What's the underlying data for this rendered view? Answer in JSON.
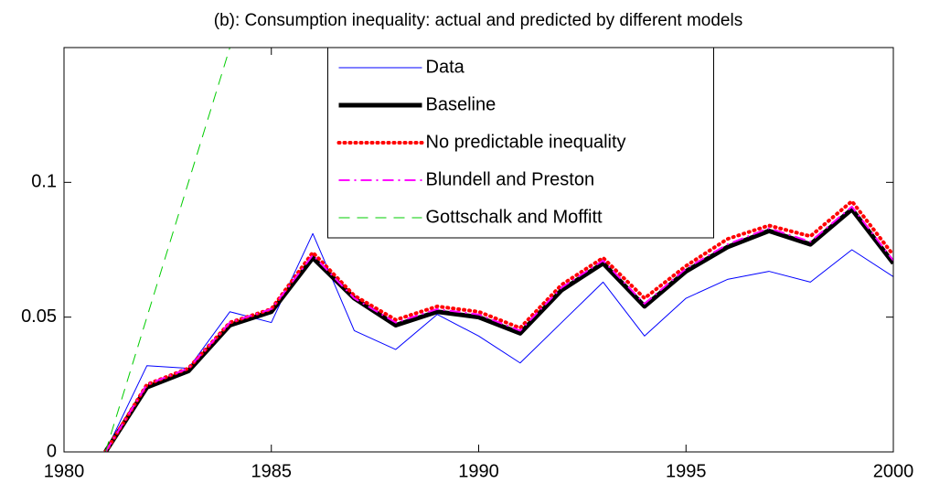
{
  "chart_data": {
    "type": "line",
    "title": "(b): Consumption inequality: actual and predicted by different models",
    "x": [
      1981,
      1982,
      1983,
      1984,
      1985,
      1986,
      1987,
      1988,
      1989,
      1990,
      1991,
      1992,
      1993,
      1994,
      1995,
      1996,
      1997,
      1998,
      1999,
      2000
    ],
    "series": [
      {
        "name": "Data",
        "color": "#0000ff",
        "style": "solid",
        "width": 1,
        "values": [
          0,
          0.032,
          0.031,
          0.052,
          0.048,
          0.081,
          0.045,
          0.038,
          0.051,
          0.043,
          0.033,
          0.048,
          0.063,
          0.043,
          0.057,
          0.064,
          0.067,
          0.063,
          0.075,
          0.065
        ]
      },
      {
        "name": "Baseline",
        "color": "#000000",
        "style": "solid",
        "width": 5,
        "values": [
          0,
          0.024,
          0.03,
          0.047,
          0.052,
          0.072,
          0.057,
          0.047,
          0.052,
          0.05,
          0.044,
          0.06,
          0.07,
          0.054,
          0.067,
          0.076,
          0.082,
          0.077,
          0.09,
          0.07
        ]
      },
      {
        "name": "No predictable inequality",
        "color": "#ff0000",
        "style": "dotted",
        "width": 4,
        "values": [
          0,
          0.025,
          0.031,
          0.048,
          0.053,
          0.074,
          0.058,
          0.049,
          0.054,
          0.052,
          0.046,
          0.062,
          0.072,
          0.057,
          0.069,
          0.079,
          0.084,
          0.08,
          0.093,
          0.073
        ]
      },
      {
        "name": "Blundell and Preston",
        "color": "#ff00ff",
        "style": "dashdot",
        "width": 2,
        "values": [
          0,
          0.025,
          0.031,
          0.048,
          0.053,
          0.073,
          0.057,
          0.048,
          0.053,
          0.051,
          0.045,
          0.061,
          0.071,
          0.055,
          0.068,
          0.077,
          0.083,
          0.078,
          0.091,
          0.071
        ]
      },
      {
        "name": "Gottschalk and Moffitt",
        "color": "#00cc00",
        "style": "dashed",
        "width": 1,
        "values": [
          0,
          0.05,
          0.1,
          0.15,
          null,
          null,
          null,
          null,
          null,
          null,
          null,
          null,
          null,
          null,
          null,
          null,
          null,
          null,
          null,
          null
        ]
      }
    ],
    "xlim": [
      1980,
      2000
    ],
    "xticks": [
      1980,
      1985,
      1990,
      1995,
      2000
    ],
    "ylim": [
      0,
      0.15
    ],
    "yticks": [
      0,
      0.05,
      0.1
    ],
    "grid": false,
    "legend": "top"
  }
}
